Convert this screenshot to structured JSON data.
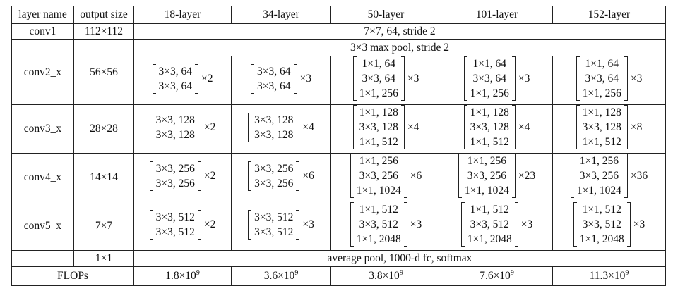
{
  "headers": [
    "layer name",
    "output size",
    "18-layer",
    "34-layer",
    "50-layer",
    "101-layer",
    "152-layer"
  ],
  "conv1": {
    "name": "conv1",
    "size": "112×112",
    "desc": "7×7, 64, stride 2"
  },
  "pool": {
    "desc": "3×3 max pool, stride 2"
  },
  "stages": [
    {
      "name": "conv2_x",
      "size": "56×56",
      "cells": [
        {
          "lines": [
            "3×3, 64",
            "3×3, 64"
          ],
          "mult": "×2"
        },
        {
          "lines": [
            "3×3, 64",
            "3×3, 64"
          ],
          "mult": "×3"
        },
        {
          "lines": [
            "1×1, 64",
            "3×3, 64",
            "1×1, 256"
          ],
          "mult": "×3"
        },
        {
          "lines": [
            "1×1, 64",
            "3×3, 64",
            "1×1, 256"
          ],
          "mult": "×3"
        },
        {
          "lines": [
            "1×1, 64",
            "3×3, 64",
            "1×1, 256"
          ],
          "mult": "×3"
        }
      ]
    },
    {
      "name": "conv3_x",
      "size": "28×28",
      "cells": [
        {
          "lines": [
            "3×3, 128",
            "3×3, 128"
          ],
          "mult": "×2"
        },
        {
          "lines": [
            "3×3, 128",
            "3×3, 128"
          ],
          "mult": "×4"
        },
        {
          "lines": [
            "1×1, 128",
            "3×3, 128",
            "1×1, 512"
          ],
          "mult": "×4"
        },
        {
          "lines": [
            "1×1, 128",
            "3×3, 128",
            "1×1, 512"
          ],
          "mult": "×4"
        },
        {
          "lines": [
            "1×1, 128",
            "3×3, 128",
            "1×1, 512"
          ],
          "mult": "×8"
        }
      ]
    },
    {
      "name": "conv4_x",
      "size": "14×14",
      "cells": [
        {
          "lines": [
            "3×3, 256",
            "3×3, 256"
          ],
          "mult": "×2"
        },
        {
          "lines": [
            "3×3, 256",
            "3×3, 256"
          ],
          "mult": "×6"
        },
        {
          "lines": [
            "1×1, 256",
            "3×3, 256",
            "1×1, 1024"
          ],
          "mult": "×6"
        },
        {
          "lines": [
            "1×1, 256",
            "3×3, 256",
            "1×1, 1024"
          ],
          "mult": "×23"
        },
        {
          "lines": [
            "1×1, 256",
            "3×3, 256",
            "1×1, 1024"
          ],
          "mult": "×36"
        }
      ]
    },
    {
      "name": "conv5_x",
      "size": "7×7",
      "cells": [
        {
          "lines": [
            "3×3, 512",
            "3×3, 512"
          ],
          "mult": "×2"
        },
        {
          "lines": [
            "3×3, 512",
            "3×3, 512"
          ],
          "mult": "×3"
        },
        {
          "lines": [
            "1×1, 512",
            "3×3, 512",
            "1×1, 2048"
          ],
          "mult": "×3"
        },
        {
          "lines": [
            "1×1, 512",
            "3×3, 512",
            "1×1, 2048"
          ],
          "mult": "×3"
        },
        {
          "lines": [
            "1×1, 512",
            "3×3, 512",
            "1×1, 2048"
          ],
          "mult": "×3"
        }
      ]
    }
  ],
  "final": {
    "size": "1×1",
    "desc": "average pool, 1000-d fc, softmax"
  },
  "flops": {
    "label": "FLOPs",
    "values": [
      {
        "mant": "1.8×10",
        "exp": "9"
      },
      {
        "mant": "3.6×10",
        "exp": "9"
      },
      {
        "mant": "3.8×10",
        "exp": "9"
      },
      {
        "mant": "7.6×10",
        "exp": "9"
      },
      {
        "mant": "11.3×10",
        "exp": "9"
      }
    ]
  }
}
